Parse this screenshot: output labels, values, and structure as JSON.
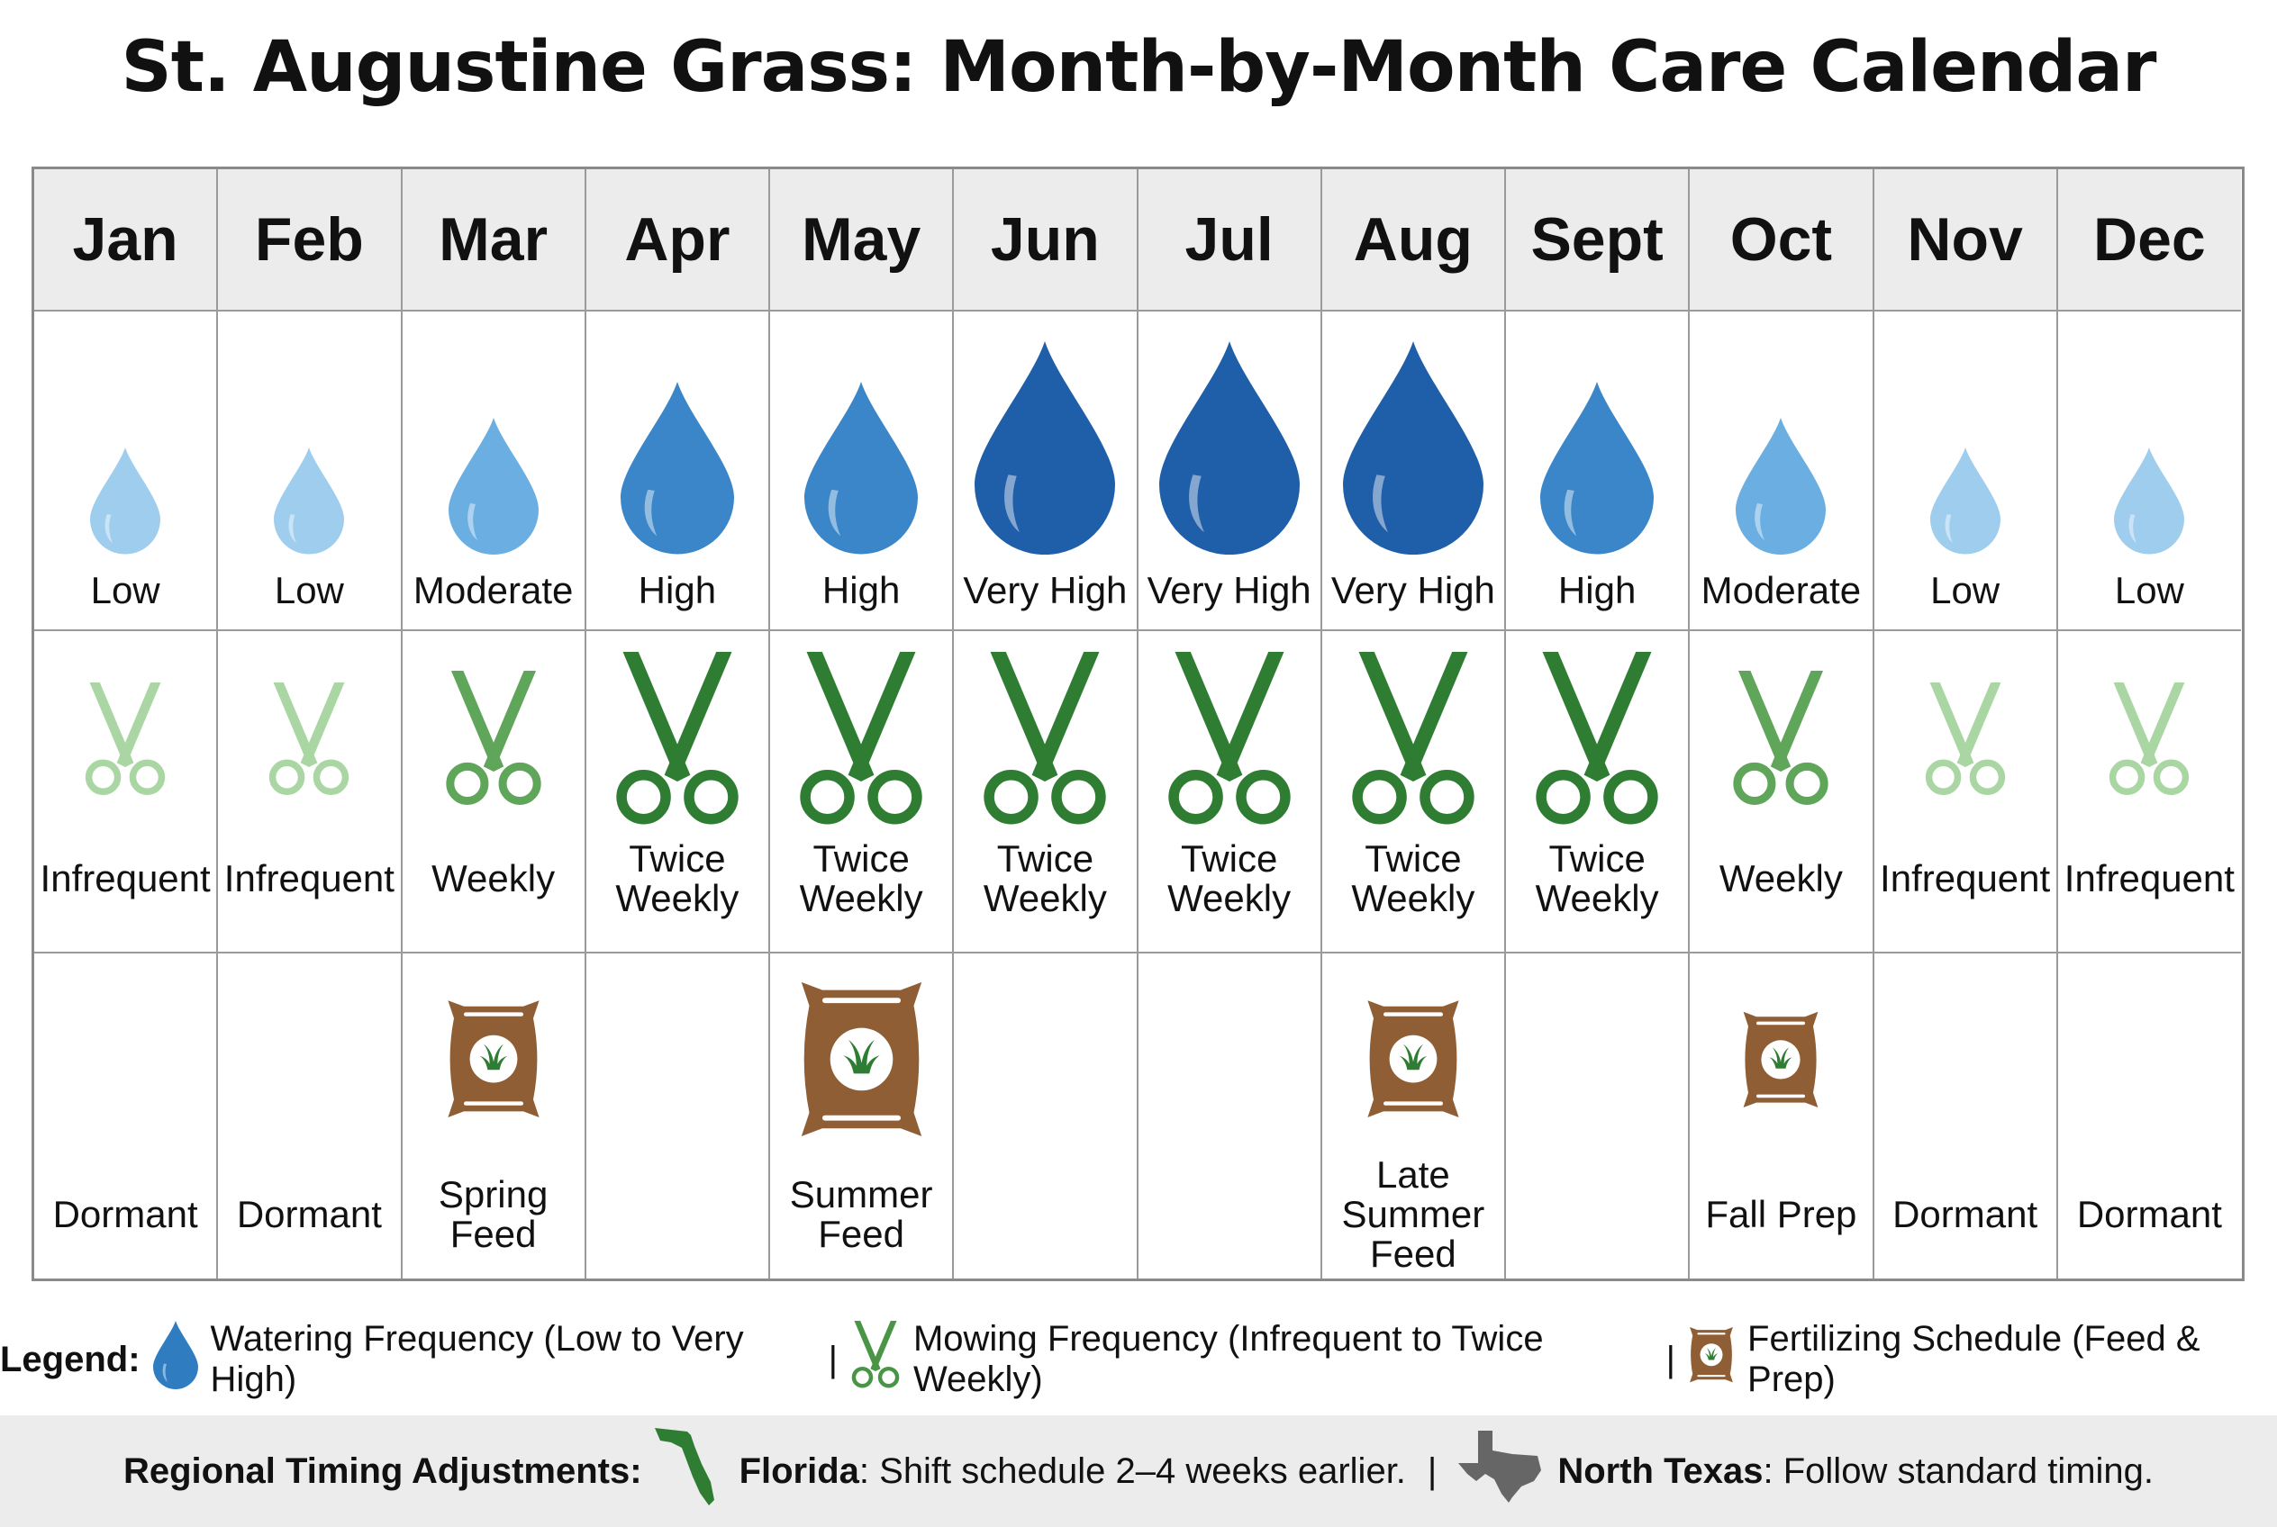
{
  "title": "St. Augustine Grass: Month-by-Month Care Calendar",
  "colors": {
    "water": {
      "Low": "#9fcdee",
      "Moderate": "#6aaee2",
      "High": "#3b86c9",
      "Very High": "#1f5ea8"
    },
    "mow": {
      "Infrequent": "#a9d6a2",
      "Weekly": "#5fa55a",
      "Twice Weekly": "#2e7d32"
    },
    "bag": "#8f5e34",
    "grass": "#2e7d32",
    "florida": "#2e7d32",
    "texas": "#666666"
  },
  "months": [
    {
      "name": "Jan",
      "water": "Low",
      "mow": "Infrequent",
      "fert": "Dormant",
      "bag": "none"
    },
    {
      "name": "Feb",
      "water": "Low",
      "mow": "Infrequent",
      "fert": "Dormant",
      "bag": "none"
    },
    {
      "name": "Mar",
      "water": "Moderate",
      "mow": "Weekly",
      "fert": "Spring\nFeed",
      "bag": "medium"
    },
    {
      "name": "Apr",
      "water": "High",
      "mow": "Twice\nWeekly",
      "fert": "",
      "bag": "none"
    },
    {
      "name": "May",
      "water": "High",
      "mow": "Twice\nWeekly",
      "fert": "Summer\nFeed",
      "bag": "large"
    },
    {
      "name": "Jun",
      "water": "Very High",
      "mow": "Twice\nWeekly",
      "fert": "",
      "bag": "none"
    },
    {
      "name": "Jul",
      "water": "Very High",
      "mow": "Twice\nWeekly",
      "fert": "",
      "bag": "none"
    },
    {
      "name": "Aug",
      "water": "Very High",
      "mow": "Twice\nWeekly",
      "fert": "Late\nSummer\nFeed",
      "bag": "medium"
    },
    {
      "name": "Sept",
      "water": "High",
      "mow": "Twice\nWeekly",
      "fert": "",
      "bag": "none"
    },
    {
      "name": "Oct",
      "water": "Moderate",
      "mow": "Weekly",
      "fert": "Fall Prep",
      "bag": "small"
    },
    {
      "name": "Nov",
      "water": "Low",
      "mow": "Infrequent",
      "fert": "Dormant",
      "bag": "none"
    },
    {
      "name": "Dec",
      "water": "Low",
      "mow": "Infrequent",
      "fert": "Dormant",
      "bag": "none"
    }
  ],
  "legend": {
    "label": "Legend:",
    "water": "Watering Frequency (Low to Very High)",
    "mow": "Mowing Frequency (Infrequent to Twice Weekly)",
    "fert": "Fertilizing Schedule (Feed & Prep)",
    "sep": "|"
  },
  "regional": {
    "label": "Regional Timing Adjustments:",
    "florida_name": "Florida",
    "florida_text": ": Shift schedule 2–4 weeks earlier.",
    "sep": "|",
    "texas_name": "North Texas",
    "texas_text": ": Follow standard timing."
  }
}
